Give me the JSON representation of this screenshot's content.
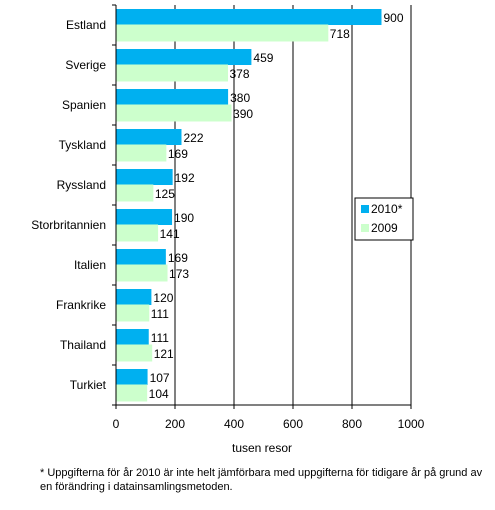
{
  "chart_data": {
    "type": "bar",
    "orientation": "horizontal",
    "categories": [
      "Estland",
      "Sverige",
      "Spanien",
      "Tyskland",
      "Ryssland",
      "Storbritannien",
      "Italien",
      "Frankrike",
      "Thailand",
      "Turkiet"
    ],
    "series": [
      {
        "name": "2010*",
        "values": [
          900,
          459,
          380,
          222,
          192,
          190,
          169,
          120,
          111,
          107
        ],
        "color": "#00b0f0"
      },
      {
        "name": "2009",
        "values": [
          718,
          378,
          390,
          169,
          125,
          141,
          173,
          111,
          121,
          104
        ],
        "color": "#ccffcc"
      }
    ],
    "xlabel": "tusen resor",
    "ylabel": "",
    "xlim": [
      0,
      1000
    ],
    "xticks": [
      0,
      200,
      400,
      600,
      800,
      1000
    ],
    "grid": true,
    "legend_position": "right"
  },
  "footnote": "* Uppgifterna för år 2010 är inte helt jämförbara med uppgifterna för tidigare år på grund av en förändring i datainsamlingsmetoden."
}
